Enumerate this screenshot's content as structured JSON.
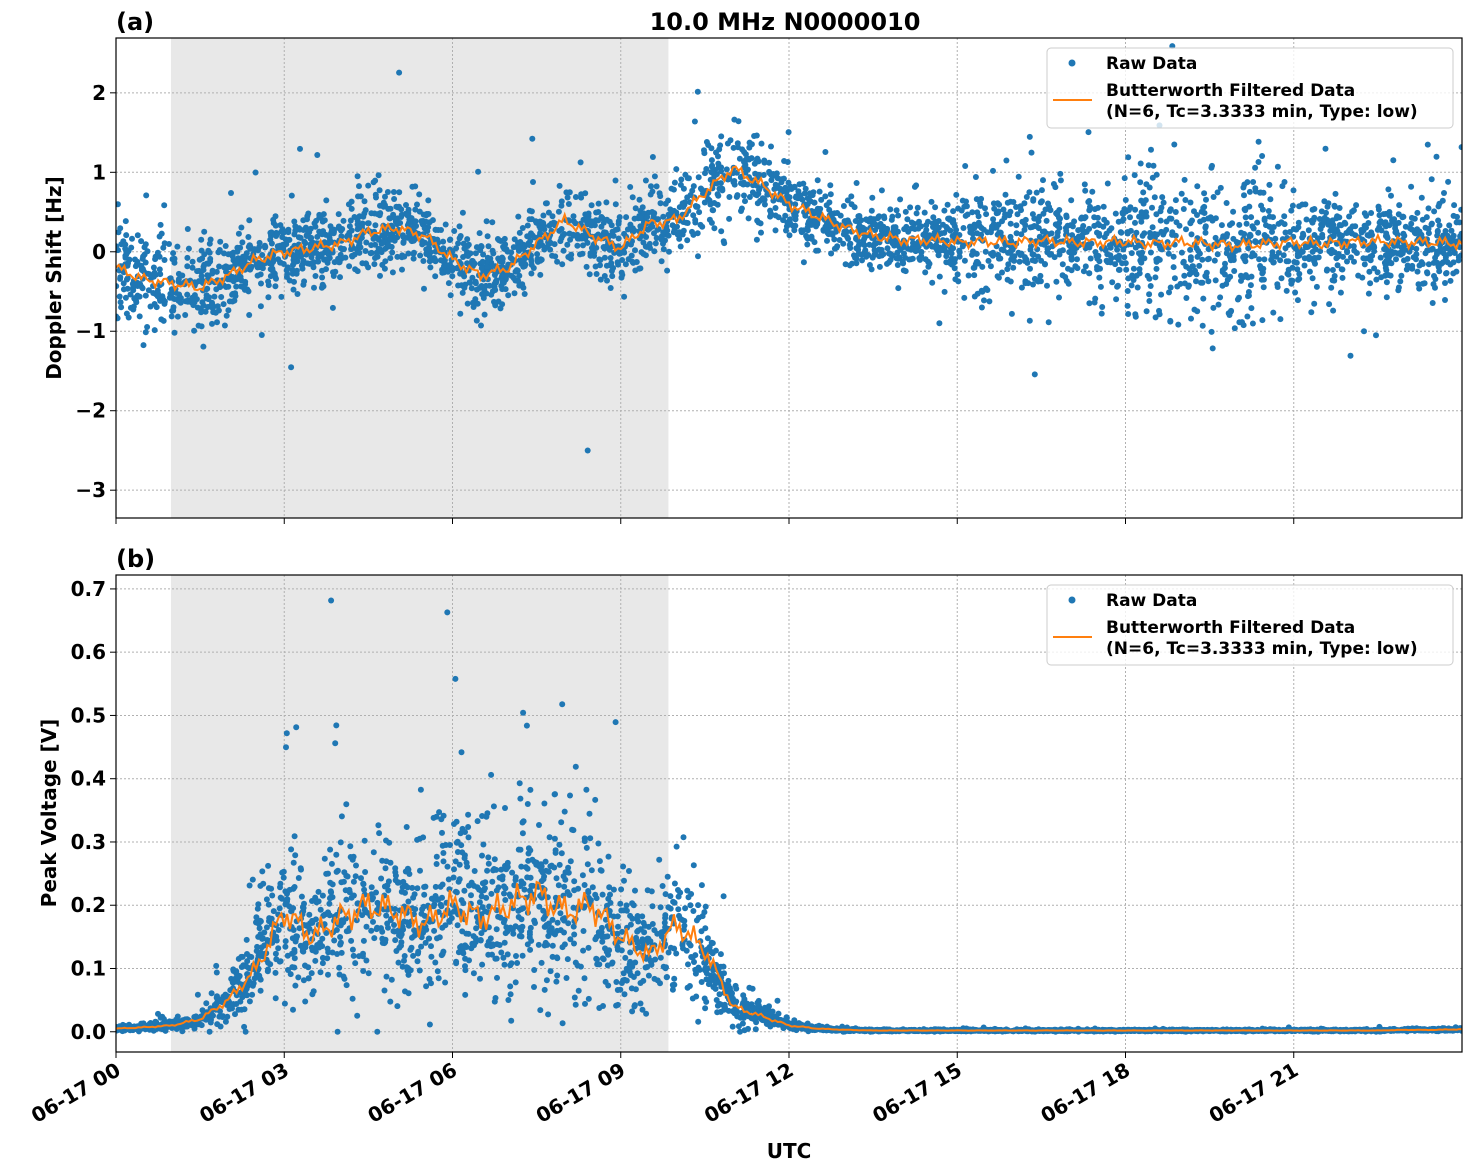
{
  "chart_data": [
    {
      "type": "scatter",
      "panel_label": "(a)",
      "title": "10.0 MHz N0000010",
      "xlabel": "",
      "ylabel": "Doppler Shift [Hz]",
      "xlim_hours_utc": [
        0,
        24
      ],
      "ylim": [
        -3.35,
        2.69
      ],
      "yticks": [
        -3,
        -2,
        -1,
        0,
        1,
        2
      ],
      "ytick_labels": [
        "−3",
        "−2",
        "−1",
        "0",
        "1",
        "2"
      ],
      "grid": true,
      "legend_placement": "top-right",
      "shaded_region_hours": [
        0.98,
        9.85
      ],
      "series": [
        {
          "name": "Raw Data",
          "kind": "points",
          "color": "#1f77b4",
          "approx_center_hz_every_half_hour": [
            -0.2,
            -0.35,
            -0.4,
            -0.45,
            -0.3,
            -0.1,
            0.0,
            0.05,
            0.1,
            0.25,
            0.3,
            0.2,
            -0.1,
            -0.3,
            -0.2,
            0.1,
            0.4,
            0.2,
            0.05,
            0.35,
            0.4,
            0.75,
            1.05,
            0.85,
            0.6,
            0.45,
            0.3,
            0.2,
            0.15,
            0.15,
            0.12,
            0.13,
            0.12,
            0.14,
            0.12,
            0.12,
            0.13,
            0.1,
            0.12,
            0.1,
            0.08,
            0.1,
            0.12,
            0.1,
            0.12,
            0.13,
            0.12,
            0.12,
            0.1
          ],
          "approx_spread_hz_hourly": [
            0.5,
            0.5,
            0.4,
            0.4,
            0.4,
            0.4,
            0.45,
            0.4,
            0.4,
            0.4,
            0.45,
            0.45,
            0.35,
            0.35,
            0.35,
            0.6,
            0.6,
            0.6,
            0.8,
            0.8,
            0.8,
            0.5,
            0.5,
            0.5
          ]
        },
        {
          "name": "Butterworth Filtered Data\n(N=6, Tc=3.3333 min, Type: low)",
          "kind": "line",
          "color": "#ff7f0e",
          "values_every_half_hour": [
            -0.2,
            -0.35,
            -0.4,
            -0.45,
            -0.3,
            -0.1,
            0.0,
            0.05,
            0.1,
            0.25,
            0.3,
            0.2,
            -0.1,
            -0.3,
            -0.2,
            0.1,
            0.4,
            0.2,
            0.05,
            0.35,
            0.4,
            0.75,
            1.05,
            0.85,
            0.6,
            0.45,
            0.3,
            0.2,
            0.15,
            0.15,
            0.12,
            0.13,
            0.12,
            0.14,
            0.12,
            0.12,
            0.13,
            0.1,
            0.12,
            0.1,
            0.08,
            0.1,
            0.12,
            0.1,
            0.12,
            0.13,
            0.12,
            0.12,
            0.1
          ]
        }
      ]
    },
    {
      "type": "scatter",
      "panel_label": "(b)",
      "xlabel": "UTC",
      "ylabel": "Peak Voltage [V]",
      "xlim_hours_utc": [
        0,
        24
      ],
      "ylim": [
        -0.032,
        0.722
      ],
      "yticks": [
        0.0,
        0.1,
        0.2,
        0.3,
        0.4,
        0.5,
        0.6,
        0.7
      ],
      "ytick_labels": [
        "0.0",
        "0.1",
        "0.2",
        "0.3",
        "0.4",
        "0.5",
        "0.6",
        "0.7"
      ],
      "xticks_hours": [
        0,
        3,
        6,
        9,
        12,
        15,
        18,
        21
      ],
      "xtick_labels": [
        "06-17 00",
        "06-17 03",
        "06-17 06",
        "06-17 09",
        "06-17 12",
        "06-17 15",
        "06-17 18",
        "06-17 21"
      ],
      "grid": true,
      "legend_placement": "top-right",
      "shaded_region_hours": [
        0.98,
        9.85
      ],
      "series": [
        {
          "name": "Raw Data",
          "kind": "points",
          "color": "#1f77b4",
          "approx_center_v_every_half_hour": [
            0.005,
            0.007,
            0.01,
            0.02,
            0.05,
            0.1,
            0.19,
            0.15,
            0.18,
            0.2,
            0.19,
            0.17,
            0.2,
            0.18,
            0.2,
            0.22,
            0.19,
            0.2,
            0.15,
            0.12,
            0.17,
            0.13,
            0.04,
            0.025,
            0.01,
            0.005,
            0.003,
            0.002,
            0.002,
            0.002,
            0.002,
            0.002,
            0.002,
            0.002,
            0.002,
            0.002,
            0.002,
            0.002,
            0.002,
            0.002,
            0.002,
            0.002,
            0.002,
            0.002,
            0.002,
            0.002,
            0.003,
            0.003,
            0.004
          ],
          "max_v": 0.69
        },
        {
          "name": "Butterworth Filtered Data\n(N=6, Tc=3.3333 min, Type: low)",
          "kind": "line",
          "color": "#ff7f0e",
          "values_every_half_hour": [
            0.005,
            0.007,
            0.01,
            0.02,
            0.05,
            0.1,
            0.19,
            0.15,
            0.18,
            0.2,
            0.19,
            0.17,
            0.2,
            0.18,
            0.2,
            0.22,
            0.19,
            0.2,
            0.15,
            0.12,
            0.17,
            0.13,
            0.04,
            0.025,
            0.01,
            0.005,
            0.003,
            0.002,
            0.002,
            0.002,
            0.002,
            0.002,
            0.002,
            0.002,
            0.002,
            0.002,
            0.002,
            0.002,
            0.002,
            0.002,
            0.002,
            0.002,
            0.002,
            0.002,
            0.002,
            0.002,
            0.003,
            0.003,
            0.004
          ]
        }
      ]
    }
  ],
  "legend": {
    "raw": "Raw Data",
    "filtered_line1": "Butterworth Filtered Data",
    "filtered_line2": "(N=6, Tc=3.3333 min, Type: low)"
  }
}
